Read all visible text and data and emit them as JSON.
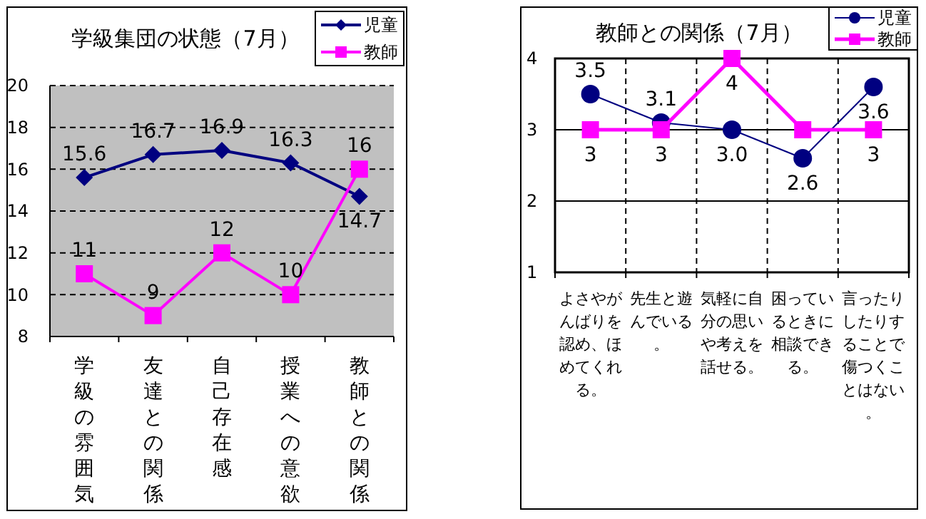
{
  "chart_data": [
    {
      "type": "line",
      "title": "学級集団の状態（7月）",
      "categories": [
        "学級の雰囲気",
        "友達との関係",
        "自己存在感",
        "授業への意欲",
        "教師との関係"
      ],
      "series": [
        {
          "name": "児童",
          "color": "#000080",
          "marker": "diamond",
          "values": [
            15.6,
            16.7,
            16.9,
            16.3,
            14.7
          ]
        },
        {
          "name": "教師",
          "color": "#ff00ff",
          "marker": "square",
          "values": [
            11,
            9,
            12,
            10,
            16
          ]
        }
      ],
      "ylim": [
        8,
        20
      ],
      "yticks": [
        8,
        10,
        12,
        14,
        16,
        18,
        20
      ],
      "grid": "y",
      "legend": "top right",
      "data_labels": true
    },
    {
      "type": "line",
      "title": "教師との関係（7月）",
      "categories": [
        "よさやがんばりを認め、ほめてくれる。",
        "先生と遊んでいる。",
        "気軽に自分の思いや考えを話せる。",
        "困っているときに相談できる。",
        "言ったりしたりすることで傷つくことはない。"
      ],
      "series": [
        {
          "name": "児童",
          "color": "#000080",
          "marker": "circle",
          "values": [
            3.5,
            3.1,
            3.0,
            2.6,
            3.6
          ],
          "value_labels": [
            "3.5",
            "3.1",
            "3.0",
            "2.6",
            "3.6"
          ]
        },
        {
          "name": "教師",
          "color": "#ff00ff",
          "marker": "square",
          "values": [
            3,
            3,
            4,
            3,
            3
          ],
          "value_labels": [
            "3",
            "3",
            "4",
            null,
            "3"
          ]
        }
      ],
      "ylim": [
        1,
        4
      ],
      "yticks": [
        1,
        2,
        3,
        4
      ],
      "grid": true,
      "legend": "top right"
    }
  ]
}
